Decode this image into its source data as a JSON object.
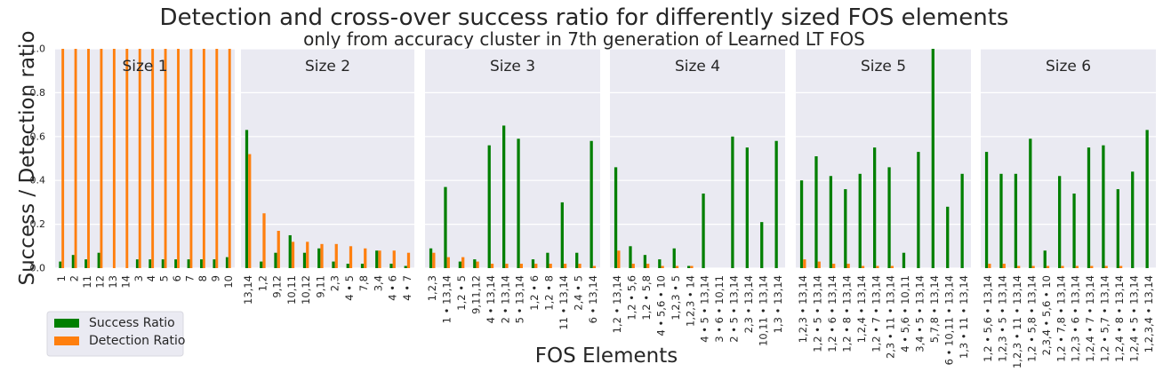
{
  "chart_data": {
    "type": "bar",
    "title": "Detection and cross-over success ratio for differently sized FOS elements",
    "subtitle": "only from accuracy cluster in 7th generation of Learned LT FOS",
    "xlabel": "FOS Elements",
    "ylabel": "Success / Detection ratio",
    "ylim": [
      0,
      1.0
    ],
    "yticks": [
      "0.0",
      "0.2",
      "0.4",
      "0.6",
      "0.8",
      "1.0"
    ],
    "grid": true,
    "legend_position": "bottom-left",
    "series": [
      {
        "name": "Success Ratio",
        "color": "#007f00"
      },
      {
        "name": "Detection Ratio",
        "color": "#ff7f0e"
      }
    ],
    "facets": [
      {
        "title": "Size 1",
        "categories": [
          "1",
          "2",
          "11",
          "12",
          "13",
          "14",
          "3",
          "4",
          "5",
          "6",
          "7",
          "8",
          "9",
          "10"
        ],
        "success": [
          0.03,
          0.06,
          0.04,
          0.07,
          0.0,
          0.0,
          0.04,
          0.04,
          0.04,
          0.04,
          0.04,
          0.04,
          0.04,
          0.05
        ],
        "detection": [
          1.0,
          1.0,
          1.0,
          1.0,
          1.0,
          1.0,
          1.0,
          1.0,
          1.0,
          1.0,
          1.0,
          1.0,
          1.0,
          1.0
        ]
      },
      {
        "title": "Size 2",
        "categories": [
          "13,14",
          "1,2",
          "9,12",
          "10,11",
          "10,12",
          "9,11",
          "2,3",
          "4 • 5",
          "7,8",
          "3,4",
          "4 • 6",
          "4 • 7"
        ],
        "success": [
          0.63,
          0.03,
          0.07,
          0.15,
          0.07,
          0.09,
          0.03,
          0.02,
          0.02,
          0.08,
          0.02,
          0.01
        ],
        "detection": [
          0.52,
          0.25,
          0.17,
          0.12,
          0.12,
          0.11,
          0.11,
          0.1,
          0.09,
          0.08,
          0.08,
          0.07
        ]
      },
      {
        "title": "Size 3",
        "categories": [
          "1,2,3",
          "1 • 13,14",
          "1,2 • 5",
          "9,11,12",
          "4 • 13,14",
          "2 • 13,14",
          "5 • 13,14",
          "1,2 • 6",
          "1,2 • 8",
          "11 • 13,14",
          "2,4 • 5",
          "6 • 13,14"
        ],
        "success": [
          0.09,
          0.37,
          0.03,
          0.04,
          0.56,
          0.65,
          0.59,
          0.04,
          0.07,
          0.3,
          0.07,
          0.58
        ],
        "detection": [
          0.07,
          0.05,
          0.05,
          0.03,
          0.02,
          0.02,
          0.02,
          0.02,
          0.02,
          0.02,
          0.02,
          0.01
        ]
      },
      {
        "title": "Size 4",
        "categories": [
          "1,2 • 13,14",
          "1,2 • 5,6",
          "1,2 • 5,8",
          "4 • 5,6 • 10",
          "1,2,3 • 5",
          "1,2,3 • 14",
          "4 • 5 • 13,14",
          "3 • 6 • 10,11",
          "2 • 5 • 13,14",
          "2,3 • 13,14",
          "10,11 • 13,14",
          "1,3 • 13,14"
        ],
        "success": [
          0.46,
          0.1,
          0.06,
          0.04,
          0.09,
          0.01,
          0.34,
          0.0,
          0.6,
          0.55,
          0.21,
          0.58
        ],
        "detection": [
          0.08,
          0.02,
          0.02,
          0.01,
          0.01,
          0.01,
          0.0,
          0.0,
          0.0,
          0.0,
          0.0,
          0.0
        ]
      },
      {
        "title": "Size 5",
        "categories": [
          "1,2,3 • 13,14",
          "1,2 • 5 • 13,14",
          "1,2 • 6 • 13,14",
          "1,2 • 8 • 13,14",
          "1,2,4 • 13,14",
          "1,2 • 7 • 13,14",
          "2,3 • 11 • 13,14",
          "4 • 5,6 • 10,11",
          "3,4 • 5 • 13,14",
          "5,7,8 • 13,14",
          "6 • 10,11 • 13,14",
          "1,3 • 11 • 13,14"
        ],
        "success": [
          0.4,
          0.51,
          0.42,
          0.36,
          0.43,
          0.55,
          0.46,
          0.07,
          0.53,
          1.0,
          0.28,
          0.43
        ],
        "detection": [
          0.04,
          0.03,
          0.02,
          0.02,
          0.01,
          0.01,
          0.01,
          0.0,
          0.0,
          0.0,
          0.0,
          0.0
        ]
      },
      {
        "title": "Size 6",
        "categories": [
          "1,2 • 5,6 • 13,14",
          "1,2,3 • 5 • 13,14",
          "1,2,3 • 11 • 13,14",
          "1,2 • 5,8 • 13,14",
          "2,3,4 • 5,6 • 10",
          "1,2 • 7,8 • 13,14",
          "1,2,3 • 6 • 13,14",
          "1,2,4 • 7 • 13,14",
          "1,2 • 5,7 • 13,14",
          "1,2,4 • 8 • 13,14",
          "1,2,4 • 5 • 13,14",
          "1,2,3,4 • 13,14"
        ],
        "success": [
          0.53,
          0.43,
          0.43,
          0.59,
          0.08,
          0.42,
          0.34,
          0.55,
          0.56,
          0.36,
          0.44,
          0.63
        ],
        "detection": [
          0.02,
          0.02,
          0.01,
          0.01,
          0.01,
          0.01,
          0.01,
          0.01,
          0.01,
          0.01,
          0.0,
          0.0
        ]
      }
    ]
  }
}
